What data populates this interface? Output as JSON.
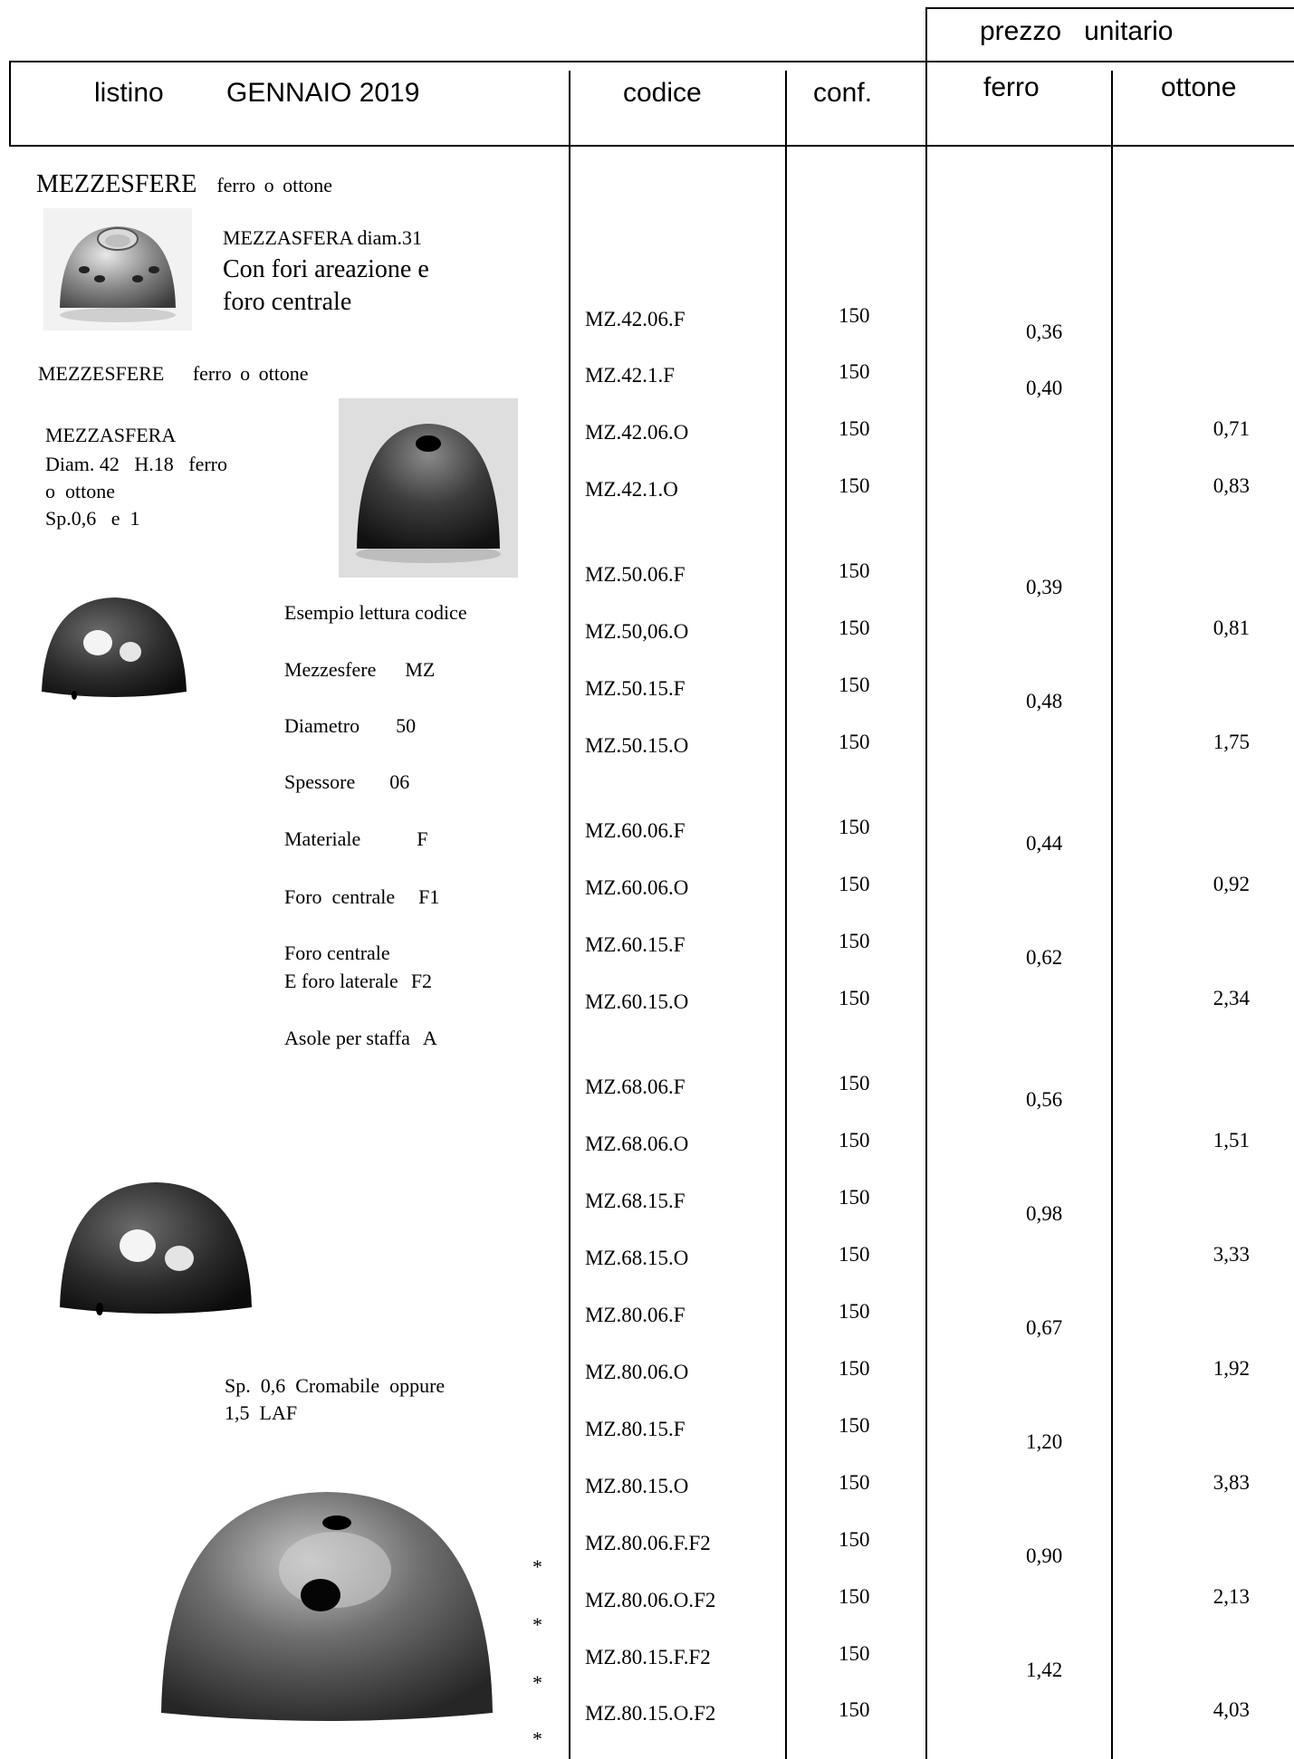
{
  "header": {
    "price_group": "prezzo unitario",
    "price_word1": "prezzo",
    "price_word2": "unitario",
    "listino": "listino",
    "period": "GENNAIO 2019",
    "codice": "codice",
    "conf": "conf.",
    "ferro": "ferro",
    "ottone": "ottone"
  },
  "section": {
    "title": "MEZZESFERE",
    "subtitle": "ferro o ottone"
  },
  "product1": {
    "line1": "MEZZASFERA diam.31",
    "line2": "Con fori areazione e",
    "line3": "foro centrale"
  },
  "section2": {
    "title": "MEZZESFERE",
    "subtitle": "ferro o ottone"
  },
  "product2": {
    "line1": "MEZZASFERA",
    "line2": "Diam. 42   H.18   ferro",
    "line3": "o  ottone",
    "line4": "Sp.0,6   e  1"
  },
  "legend": {
    "title": "Esempio lettura codice",
    "items": [
      {
        "label": "Mezzesfere",
        "value": "MZ"
      },
      {
        "label": "Diametro",
        "value": "50"
      },
      {
        "label": "Spessore",
        "value": "06"
      },
      {
        "label": "Materiale",
        "value": "F"
      },
      {
        "label": "Foro  centrale",
        "value": "F1"
      }
    ],
    "f2_line1": "Foro centrale",
    "f2_line2": "E foro laterale",
    "f2_value": "F2",
    "asole_label": "Asole per staffa",
    "asole_value": "A"
  },
  "note": {
    "line1": "Sp.  0,6  Cromabile  oppure",
    "line2": "1,5  LAF"
  },
  "asterisks": [
    "*",
    "*",
    "*",
    "*"
  ],
  "images": [
    "mezzasfera-diam31-photo",
    "mezzasfera-diam42-photo",
    "mezzasfera-small-photo",
    "mezzasfera-medium-photo",
    "mezzasfera-large-photo"
  ],
  "rows": [
    {
      "code": "MZ.42.06.F",
      "conf": "150",
      "ferro": "0,36",
      "ottone": ""
    },
    {
      "code": "MZ.42.1.F",
      "conf": "150",
      "ferro": "0,40",
      "ottone": ""
    },
    {
      "code": "MZ.42.06.O",
      "conf": "150",
      "ferro": "",
      "ottone": "0,71"
    },
    {
      "code": "MZ.42.1.O",
      "conf": "150",
      "ferro": "",
      "ottone": "0,83"
    },
    {
      "code": "MZ.50.06.F",
      "conf": "150",
      "ferro": "0,39",
      "ottone": ""
    },
    {
      "code": "MZ.50,06.O",
      "conf": "150",
      "ferro": "",
      "ottone": "0,81"
    },
    {
      "code": "MZ.50.15.F",
      "conf": "150",
      "ferro": "0,48",
      "ottone": ""
    },
    {
      "code": "MZ.50.15.O",
      "conf": "150",
      "ferro": "",
      "ottone": "1,75"
    },
    {
      "code": "MZ.60.06.F",
      "conf": "150",
      "ferro": "0,44",
      "ottone": ""
    },
    {
      "code": "MZ.60.06.O",
      "conf": "150",
      "ferro": "",
      "ottone": "0,92"
    },
    {
      "code": "MZ.60.15.F",
      "conf": "150",
      "ferro": "0,62",
      "ottone": ""
    },
    {
      "code": "MZ.60.15.O",
      "conf": "150",
      "ferro": "",
      "ottone": "2,34"
    },
    {
      "code": "MZ.68.06.F",
      "conf": "150",
      "ferro": "0,56",
      "ottone": ""
    },
    {
      "code": "MZ.68.06.O",
      "conf": "150",
      "ferro": "",
      "ottone": "1,51"
    },
    {
      "code": "MZ.68.15.F",
      "conf": "150",
      "ferro": "0,98",
      "ottone": ""
    },
    {
      "code": "MZ.68.15.O",
      "conf": "150",
      "ferro": "",
      "ottone": "3,33"
    },
    {
      "code": "MZ.80.06.F",
      "conf": "150",
      "ferro": "0,67",
      "ottone": ""
    },
    {
      "code": "MZ.80.06.O",
      "conf": "150",
      "ferro": "",
      "ottone": "1,92"
    },
    {
      "code": "MZ.80.15.F",
      "conf": "150",
      "ferro": "1,20",
      "ottone": ""
    },
    {
      "code": "MZ.80.15.O",
      "conf": "150",
      "ferro": "",
      "ottone": "3,83"
    },
    {
      "code": "MZ.80.06.F.F2",
      "conf": "150",
      "ferro": "0,90",
      "ottone": ""
    },
    {
      "code": "MZ.80.06.O.F2",
      "conf": "150",
      "ferro": "",
      "ottone": "2,13"
    },
    {
      "code": "MZ.80.15.F.F2",
      "conf": "150",
      "ferro": "1,42",
      "ottone": ""
    },
    {
      "code": "MZ.80.15.O.F2",
      "conf": "150",
      "ferro": "",
      "ottone": "4,03"
    }
  ]
}
